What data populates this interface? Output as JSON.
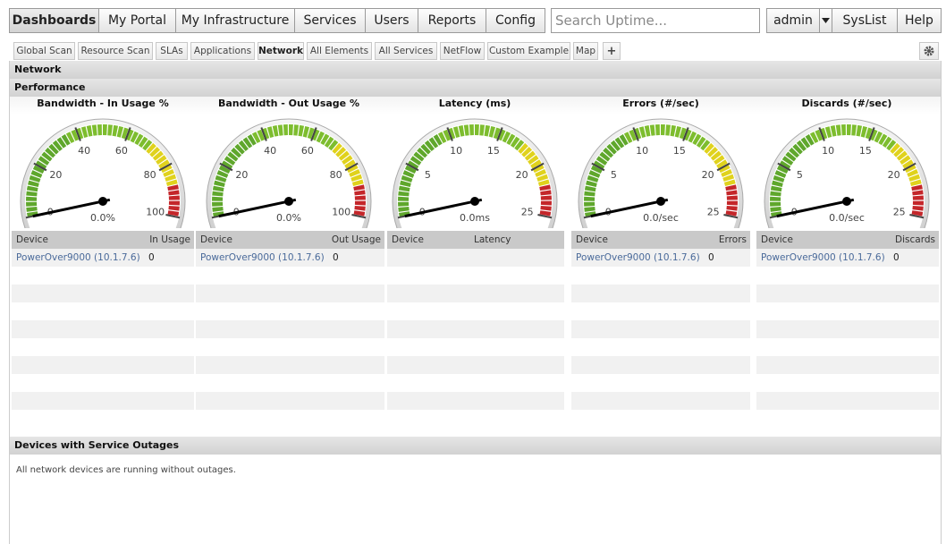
{
  "nav": {
    "left": [
      "Dashboards",
      "My Portal",
      "My Infrastructure",
      "Services",
      "Users",
      "Reports",
      "Config"
    ],
    "search_placeholder": "Search Uptime...",
    "right": [
      "admin",
      "SysList",
      "Help"
    ]
  },
  "tabs": [
    "Global Scan",
    "Resource Scan",
    "SLAs",
    "Applications",
    "Network",
    "All Elements",
    "All Services",
    "NetFlow",
    "Custom Example",
    "Map",
    "+"
  ],
  "sections": {
    "network": "Network",
    "performance": "Performance",
    "outages": "Devices with Service Outages",
    "outages_message": "All network devices are running without outages."
  },
  "gauges": [
    {
      "title": "Bandwidth - In Usage %",
      "lim": [
        0,
        100
      ],
      "ticks": [
        0,
        20,
        40,
        60,
        80,
        100
      ],
      "value": 0,
      "value_label": "0.0%",
      "table": {
        "headers": [
          "Device",
          "In Usage"
        ],
        "rows": [
          [
            "PowerOver9000 (10.1.7.6)",
            "0"
          ]
        ]
      }
    },
    {
      "title": "Bandwidth - Out Usage %",
      "lim": [
        0,
        100
      ],
      "ticks": [
        0,
        20,
        40,
        60,
        80,
        100
      ],
      "value": 0,
      "value_label": "0.0%",
      "table": {
        "headers": [
          "Device",
          "Out Usage"
        ],
        "rows": [
          [
            "PowerOver9000 (10.1.7.6)",
            "0"
          ]
        ]
      }
    },
    {
      "title": "Latency (ms)",
      "lim": [
        0,
        25
      ],
      "ticks": [
        0,
        5,
        10,
        15,
        20,
        25
      ],
      "value": 0,
      "value_label": "0.0ms",
      "table": {
        "headers": [
          "Device",
          "Latency"
        ],
        "rows": []
      }
    },
    {
      "title": "Errors (#/sec)",
      "lim": [
        0,
        25
      ],
      "ticks": [
        0,
        5,
        10,
        15,
        20,
        25
      ],
      "value": 0,
      "value_label": "0.0/sec",
      "table": {
        "headers": [
          "Device",
          "Errors"
        ],
        "rows": [
          [
            "PowerOver9000 (10.1.7.6)",
            "0"
          ]
        ]
      }
    },
    {
      "title": "Discards (#/sec)",
      "lim": [
        0,
        25
      ],
      "ticks": [
        0,
        5,
        10,
        15,
        20,
        25
      ],
      "value": 0,
      "value_label": "0.0/sec",
      "table": {
        "headers": [
          "Device",
          "Discards"
        ],
        "rows": [
          [
            "PowerOver9000 (10.1.7.6)",
            "0"
          ]
        ]
      }
    }
  ]
}
